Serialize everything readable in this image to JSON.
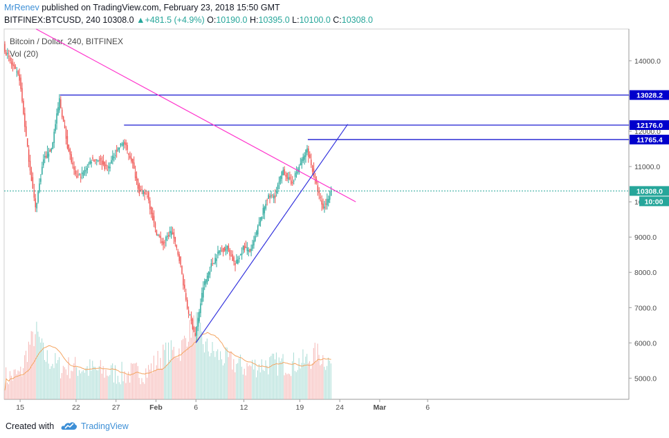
{
  "header": {
    "author": "MrRenev",
    "published": "published on TradingView.com, February 23, 2018 15:50 GMT",
    "symbol": "BITFINEX:BTCUSD, 240",
    "last": "10308.0",
    "change": "+481.5 (+4.9%)",
    "o_label": "O:",
    "o_value": "10190.0",
    "h_label": "H:",
    "h_value": "10395.0",
    "l_label": "L:",
    "l_value": "10100.0",
    "c_label": "C:",
    "c_value": "10308.0"
  },
  "footer": {
    "created": "Created with",
    "brand": "TradingView"
  },
  "colors": {
    "up": "#26a69a",
    "down": "#ef5350",
    "level_line": "#0000cc",
    "trend_line": "#ff33cc",
    "trend_support": "#3333dd",
    "volume_ma": "#f4a460",
    "axis_text": "#4a4a4a",
    "label_bg": "#0000cc",
    "current_price": "#26a69a"
  },
  "chart_data": {
    "type": "candlestick",
    "title": "Bitcoin / Dollar, 240, BITFINEX",
    "volume_label": "Vol (20)",
    "y_ticks": [
      "14000.0",
      "13000.0",
      "12000.0",
      "11000.0",
      "10000.0",
      "9000.0",
      "8000.0",
      "7000.0",
      "6000.0",
      "5000.0"
    ],
    "x_ticks": [
      "15",
      "22",
      "27",
      "Feb",
      "6",
      "12",
      "19",
      "24",
      "Mar",
      "6"
    ],
    "ylim": [
      4400,
      14900
    ],
    "price_labels": [
      "13028.2",
      "12176.0",
      "11765.4",
      "10308.0"
    ],
    "countdown": "10:00",
    "levels": [
      {
        "price": 13028.2,
        "from_date": "2018-01-20"
      },
      {
        "price": 12176.0,
        "from_date": "2018-01-28"
      },
      {
        "price": 11765.4,
        "from_date": "2018-02-20"
      }
    ],
    "current_price": 10308.0,
    "trendlines": [
      {
        "name": "resistance",
        "start": [
          "2018-01-17",
          14900
        ],
        "end": [
          "2018-02-26",
          10000
        ]
      },
      {
        "name": "support",
        "start": [
          "2018-02-06",
          6000
        ],
        "end": [
          "2018-02-25",
          12200
        ]
      }
    ],
    "price_path": [
      [
        "2018-01-13",
        14400
      ],
      [
        "2018-01-14",
        13900
      ],
      [
        "2018-01-15",
        13500
      ],
      [
        "2018-01-16",
        11500
      ],
      [
        "2018-01-17",
        9800
      ],
      [
        "2018-01-18",
        11200
      ],
      [
        "2018-01-19",
        11500
      ],
      [
        "2018-01-20",
        12900
      ],
      [
        "2018-01-21",
        11600
      ],
      [
        "2018-01-22",
        10700
      ],
      [
        "2018-01-23",
        10800
      ],
      [
        "2018-01-24",
        11200
      ],
      [
        "2018-01-25",
        11200
      ],
      [
        "2018-01-26",
        10900
      ],
      [
        "2018-01-27",
        11400
      ],
      [
        "2018-01-28",
        11700
      ],
      [
        "2018-01-29",
        11200
      ],
      [
        "2018-01-30",
        10300
      ],
      [
        "2018-01-31",
        10200
      ],
      [
        "2018-02-01",
        9200
      ],
      [
        "2018-02-02",
        8800
      ],
      [
        "2018-02-03",
        9200
      ],
      [
        "2018-02-04",
        8400
      ],
      [
        "2018-02-05",
        7000
      ],
      [
        "2018-02-06",
        6200
      ],
      [
        "2018-02-07",
        7600
      ],
      [
        "2018-02-08",
        8200
      ],
      [
        "2018-02-09",
        8600
      ],
      [
        "2018-02-10",
        8700
      ],
      [
        "2018-02-11",
        8200
      ],
      [
        "2018-02-12",
        8700
      ],
      [
        "2018-02-13",
        8600
      ],
      [
        "2018-02-14",
        9400
      ],
      [
        "2018-02-15",
        10100
      ],
      [
        "2018-02-16",
        10200
      ],
      [
        "2018-02-17",
        10900
      ],
      [
        "2018-02-18",
        10500
      ],
      [
        "2018-02-19",
        11000
      ],
      [
        "2018-02-20",
        11500
      ],
      [
        "2018-02-21",
        10600
      ],
      [
        "2018-02-22",
        9800
      ],
      [
        "2018-02-23",
        10308
      ]
    ],
    "volume_path": [
      [
        "2018-01-13",
        4900
      ],
      [
        "2018-01-15",
        5000
      ],
      [
        "2018-01-16",
        5800
      ],
      [
        "2018-01-17",
        6200
      ],
      [
        "2018-01-18",
        5500
      ],
      [
        "2018-01-20",
        5200
      ],
      [
        "2018-01-22",
        5200
      ],
      [
        "2018-01-25",
        5100
      ],
      [
        "2018-01-28",
        5000
      ],
      [
        "2018-01-31",
        5100
      ],
      [
        "2018-02-02",
        5600
      ],
      [
        "2018-02-04",
        5700
      ],
      [
        "2018-02-05",
        6200
      ],
      [
        "2018-02-06",
        6500
      ],
      [
        "2018-02-07",
        5800
      ],
      [
        "2018-02-09",
        5500
      ],
      [
        "2018-02-12",
        5200
      ],
      [
        "2018-02-15",
        5300
      ],
      [
        "2018-02-18",
        5300
      ],
      [
        "2018-02-20",
        5400
      ],
      [
        "2018-02-21",
        5600
      ],
      [
        "2018-02-23",
        5300
      ]
    ]
  }
}
